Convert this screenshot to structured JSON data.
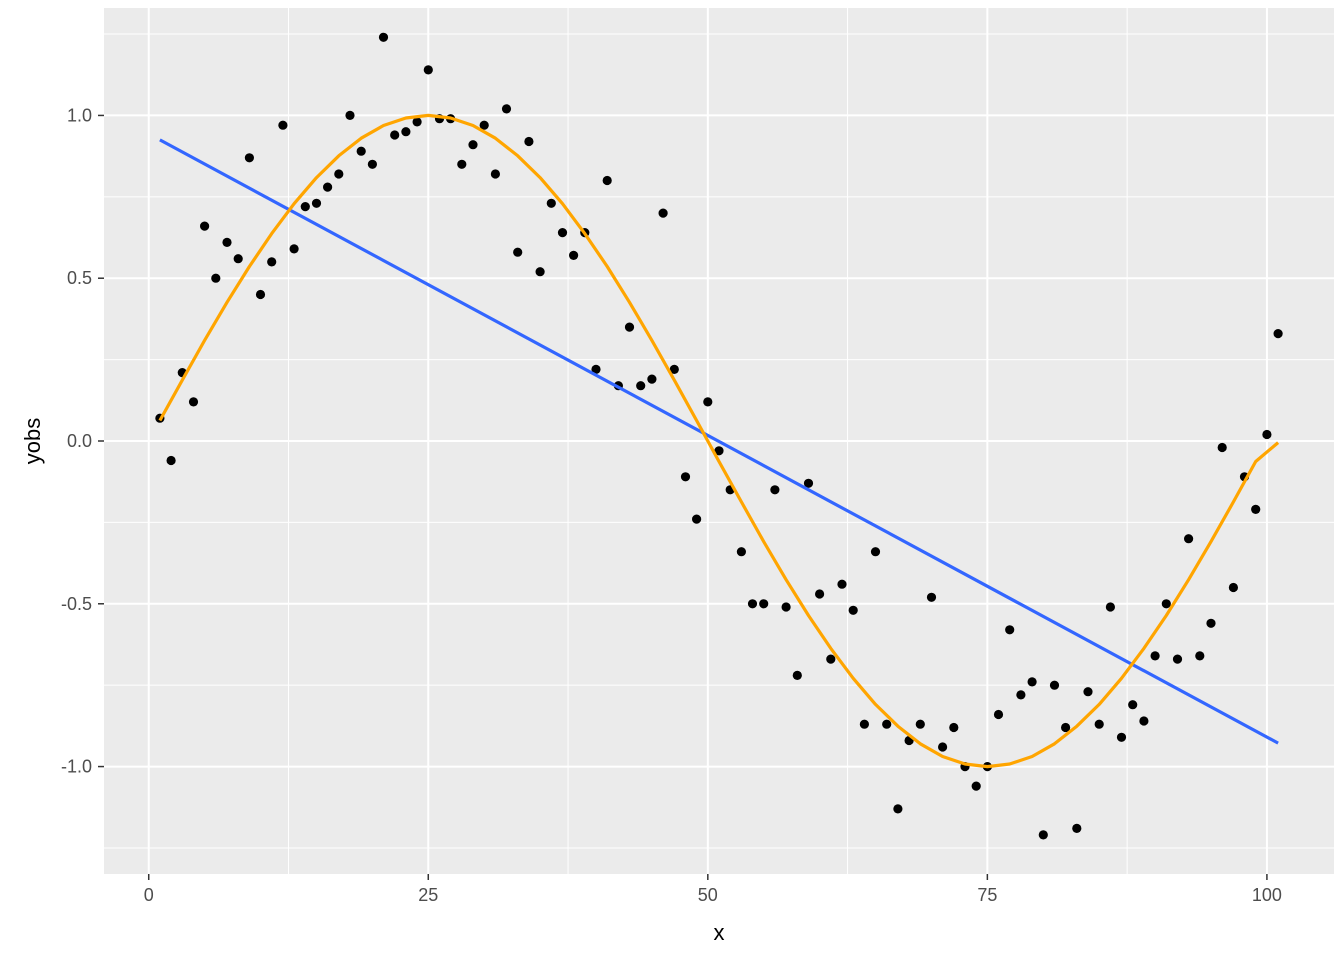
{
  "chart_data": {
    "type": "scatter",
    "title": "",
    "xlabel": "x",
    "ylabel": "yobs",
    "xlim": [
      -4,
      106
    ],
    "ylim": [
      -1.33,
      1.33
    ],
    "xticks": [
      0,
      25,
      50,
      75,
      100
    ],
    "xtick_labels": [
      "0",
      "25",
      "50",
      "75",
      "100"
    ],
    "yticks": [
      -1.0,
      -0.5,
      0.0,
      0.5,
      1.0
    ],
    "ytick_labels": [
      "-1.0",
      "-0.5",
      "0.0",
      "0.5",
      "1.0"
    ],
    "grid": true,
    "legend": "none",
    "colors": {
      "panel": "#ebebeb",
      "grid": "#ffffff",
      "points": "#000000",
      "linear_fit": "#3366ff",
      "true_curve": "#ffa500"
    },
    "series": [
      {
        "kind": "points",
        "x": [
          1,
          2,
          3,
          4,
          5,
          6,
          7,
          8,
          9,
          10,
          11,
          12,
          13,
          14,
          15,
          16,
          17,
          18,
          19,
          20,
          21,
          22,
          23,
          24,
          25,
          26,
          27,
          28,
          29,
          30,
          31,
          32,
          33,
          34,
          35,
          36,
          37,
          38,
          39,
          40,
          41,
          42,
          43,
          44,
          45,
          46,
          47,
          48,
          49,
          50,
          51,
          52,
          53,
          54,
          55,
          56,
          57,
          58,
          59,
          60,
          61,
          62,
          63,
          64,
          65,
          66,
          67,
          68,
          69,
          70,
          71,
          72,
          73,
          74,
          75,
          76,
          77,
          78,
          79,
          80,
          81,
          82,
          83,
          84,
          85,
          86,
          87,
          88,
          89,
          90,
          91,
          92,
          93,
          94,
          95,
          96,
          97,
          98,
          99,
          100,
          101
        ],
        "y": [
          0.07,
          -0.06,
          0.21,
          0.12,
          0.66,
          0.5,
          0.61,
          0.56,
          0.87,
          0.45,
          0.55,
          0.97,
          0.59,
          0.72,
          0.73,
          0.78,
          0.82,
          1.0,
          0.89,
          0.85,
          1.24,
          0.94,
          0.95,
          0.98,
          1.14,
          0.99,
          0.99,
          0.85,
          0.91,
          0.97,
          0.82,
          1.02,
          0.58,
          0.92,
          0.52,
          0.73,
          0.64,
          0.57,
          0.64,
          0.22,
          0.8,
          0.17,
          0.35,
          0.17,
          0.19,
          0.7,
          0.22,
          -0.11,
          -0.24,
          0.12,
          -0.03,
          -0.15,
          -0.34,
          -0.5,
          -0.5,
          -0.15,
          -0.51,
          -0.72,
          -0.13,
          -0.47,
          -0.67,
          -0.44,
          -0.52,
          -0.87,
          -0.34,
          -0.87,
          -1.13,
          -0.92,
          -0.87,
          -0.48,
          -0.94,
          -0.88,
          -1.0,
          -1.06,
          -1.0,
          -0.84,
          -0.58,
          -0.78,
          -0.74,
          -1.21,
          -0.75,
          -0.88,
          -1.19,
          -0.77,
          -0.87,
          -0.51,
          -0.91,
          -0.81,
          -0.86,
          -0.66,
          -0.5,
          -0.67,
          -0.3,
          -0.66,
          -0.56,
          -0.02,
          -0.45,
          -0.11,
          -0.21,
          0.02,
          0.33
        ]
      },
      {
        "kind": "line",
        "label": "linear fit",
        "x": [
          1,
          101
        ],
        "y": [
          0.925,
          -0.928
        ]
      },
      {
        "kind": "curve",
        "label": "sine curve",
        "x": [
          1,
          3,
          5,
          7,
          9,
          11,
          13,
          15,
          17,
          19,
          21,
          23,
          25,
          27,
          29,
          31,
          33,
          35,
          37,
          39,
          41,
          43,
          45,
          47,
          49,
          51,
          53,
          55,
          57,
          59,
          61,
          63,
          65,
          67,
          69,
          71,
          73,
          75,
          77,
          79,
          81,
          83,
          85,
          87,
          89,
          91,
          93,
          95,
          97,
          99,
          101
        ],
        "y": [
          0.063,
          0.187,
          0.309,
          0.426,
          0.536,
          0.637,
          0.729,
          0.809,
          0.876,
          0.93,
          0.969,
          0.992,
          1.0,
          0.992,
          0.969,
          0.93,
          0.876,
          0.809,
          0.729,
          0.637,
          0.536,
          0.426,
          0.309,
          0.187,
          0.063,
          -0.063,
          -0.187,
          -0.309,
          -0.426,
          -0.536,
          -0.637,
          -0.729,
          -0.809,
          -0.876,
          -0.93,
          -0.969,
          -0.992,
          -1.0,
          -0.992,
          -0.969,
          -0.93,
          -0.876,
          -0.809,
          -0.729,
          -0.637,
          -0.536,
          -0.426,
          -0.309,
          -0.187,
          -0.063,
          -0.005
        ]
      }
    ]
  }
}
